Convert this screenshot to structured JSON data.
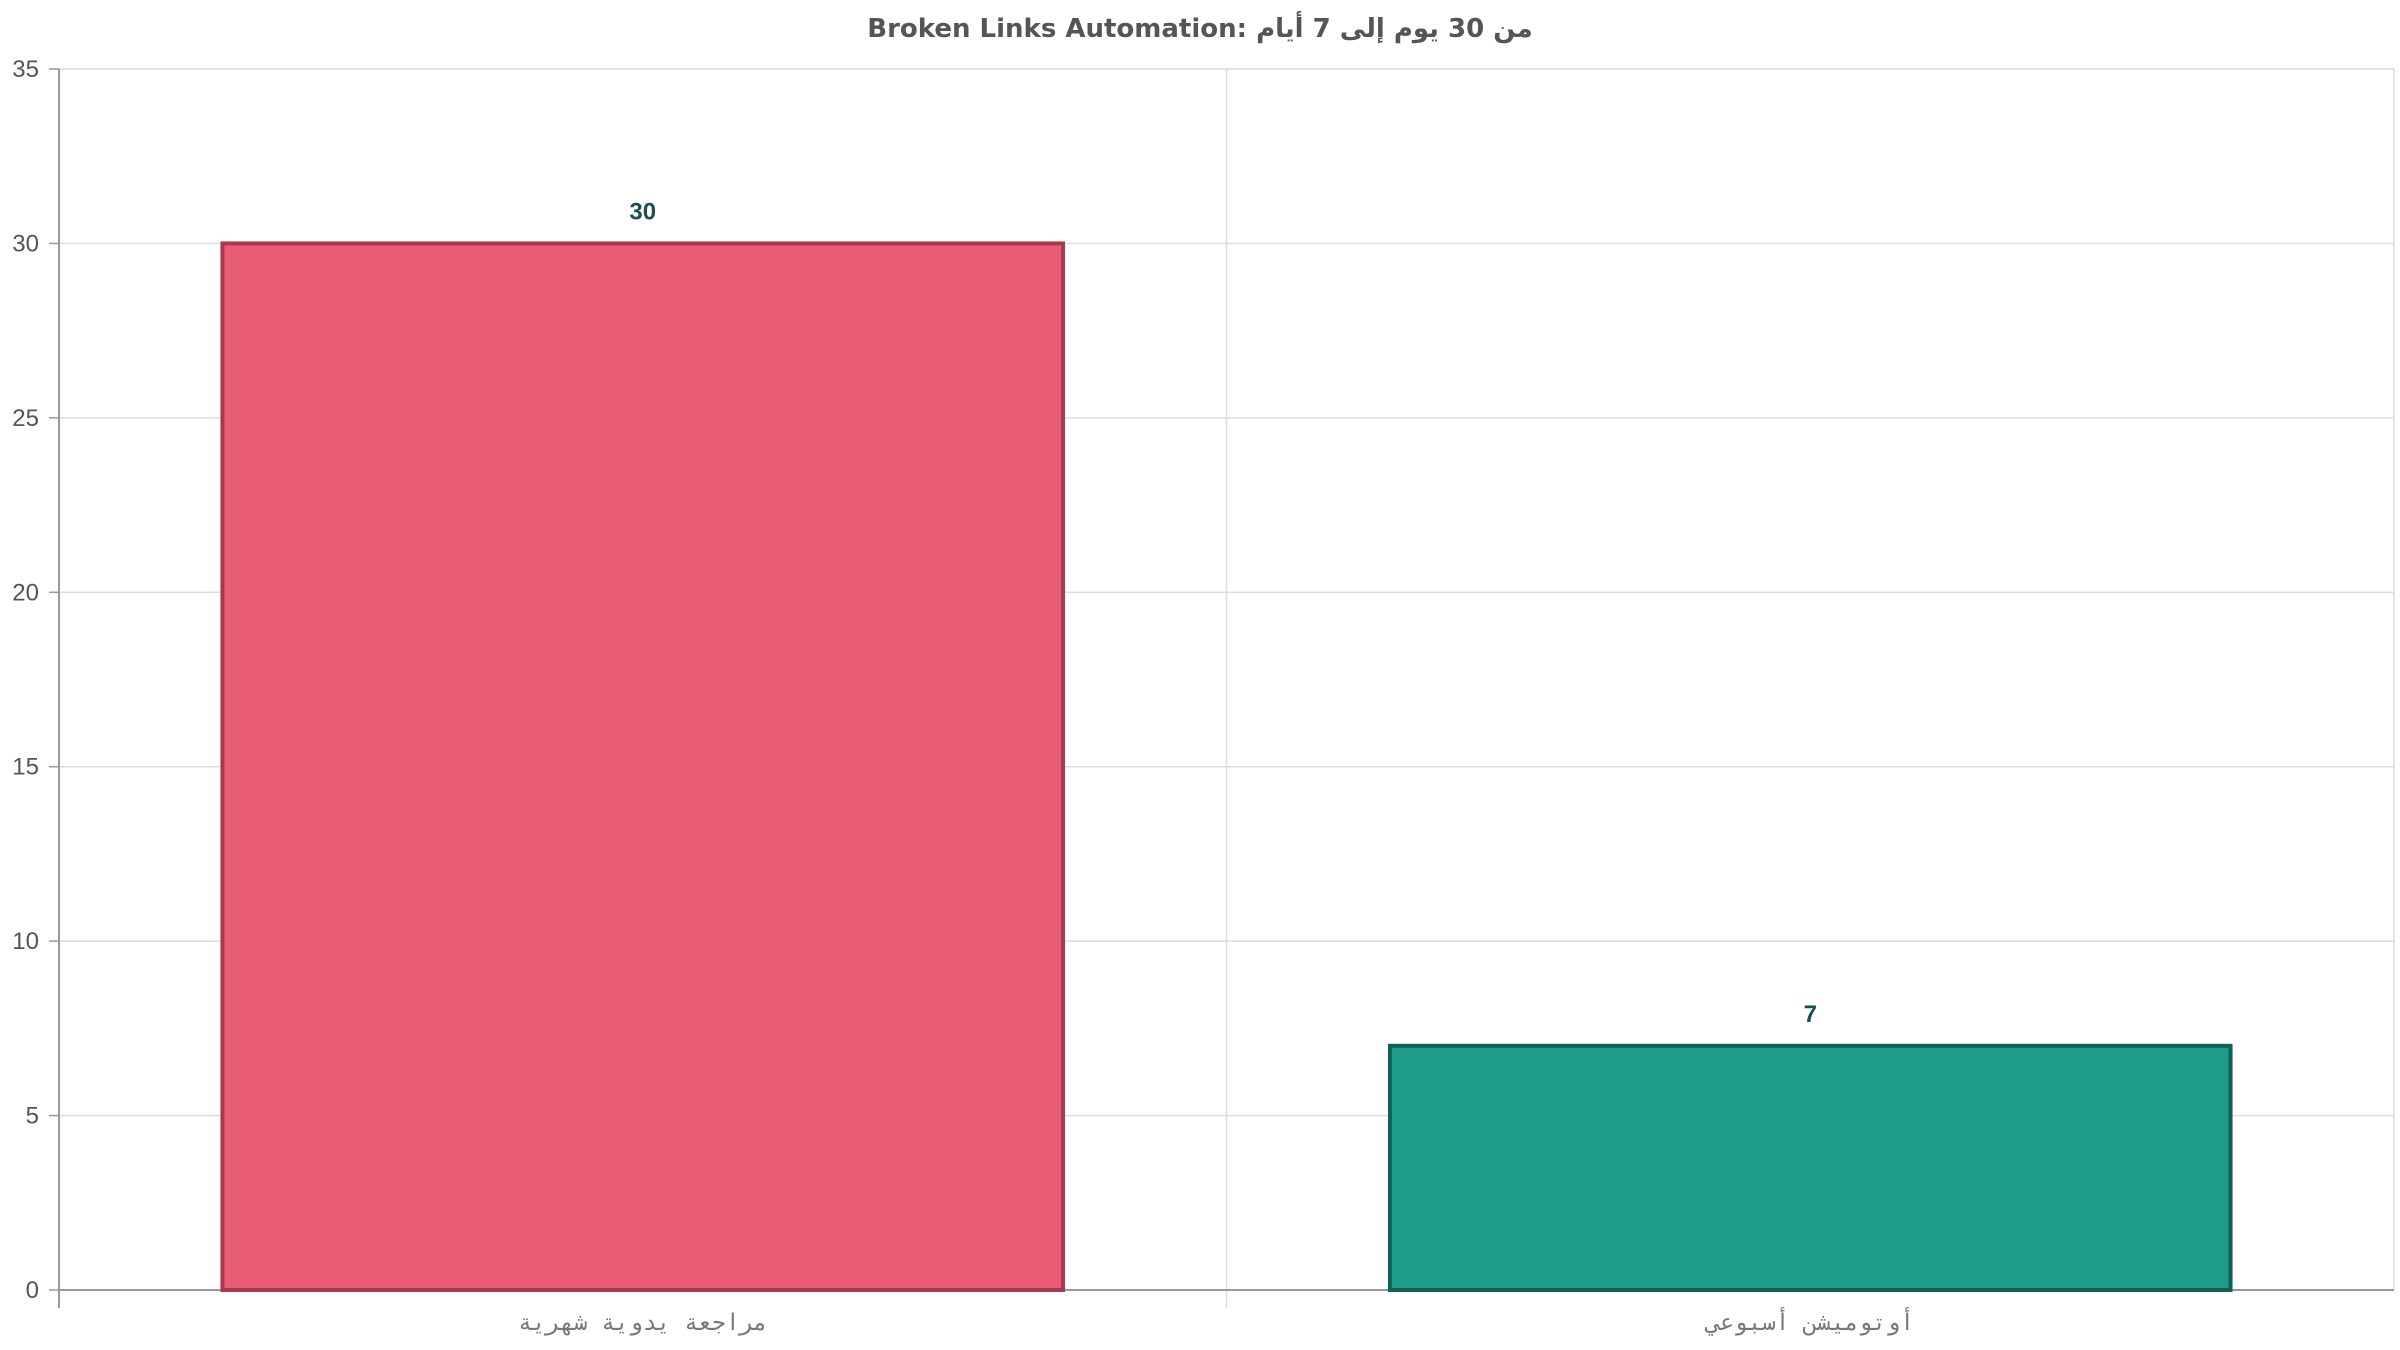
{
  "chart_data": {
    "type": "bar",
    "title": "Broken Links Automation: من 30 يوم إلى 7 أيام",
    "xlabel": "",
    "ylabel": "",
    "categories": [
      "مراجعة يدوية شهرية",
      "أوتوميشن أسبوعي"
    ],
    "values": [
      30,
      7
    ],
    "data_labels": [
      "30",
      "7"
    ],
    "ylim": [
      0,
      35
    ],
    "yticks": [
      0,
      5,
      10,
      15,
      20,
      25,
      30,
      35
    ],
    "grid": true,
    "legend": "none",
    "colors": {
      "bars": [
        "#e85d75",
        "#1f9c8a"
      ],
      "bar_borders": [
        "#a8384d",
        "#116155"
      ],
      "value_label": "#1d4e4e",
      "grid": "#dddddd",
      "axis": "#999999"
    }
  }
}
